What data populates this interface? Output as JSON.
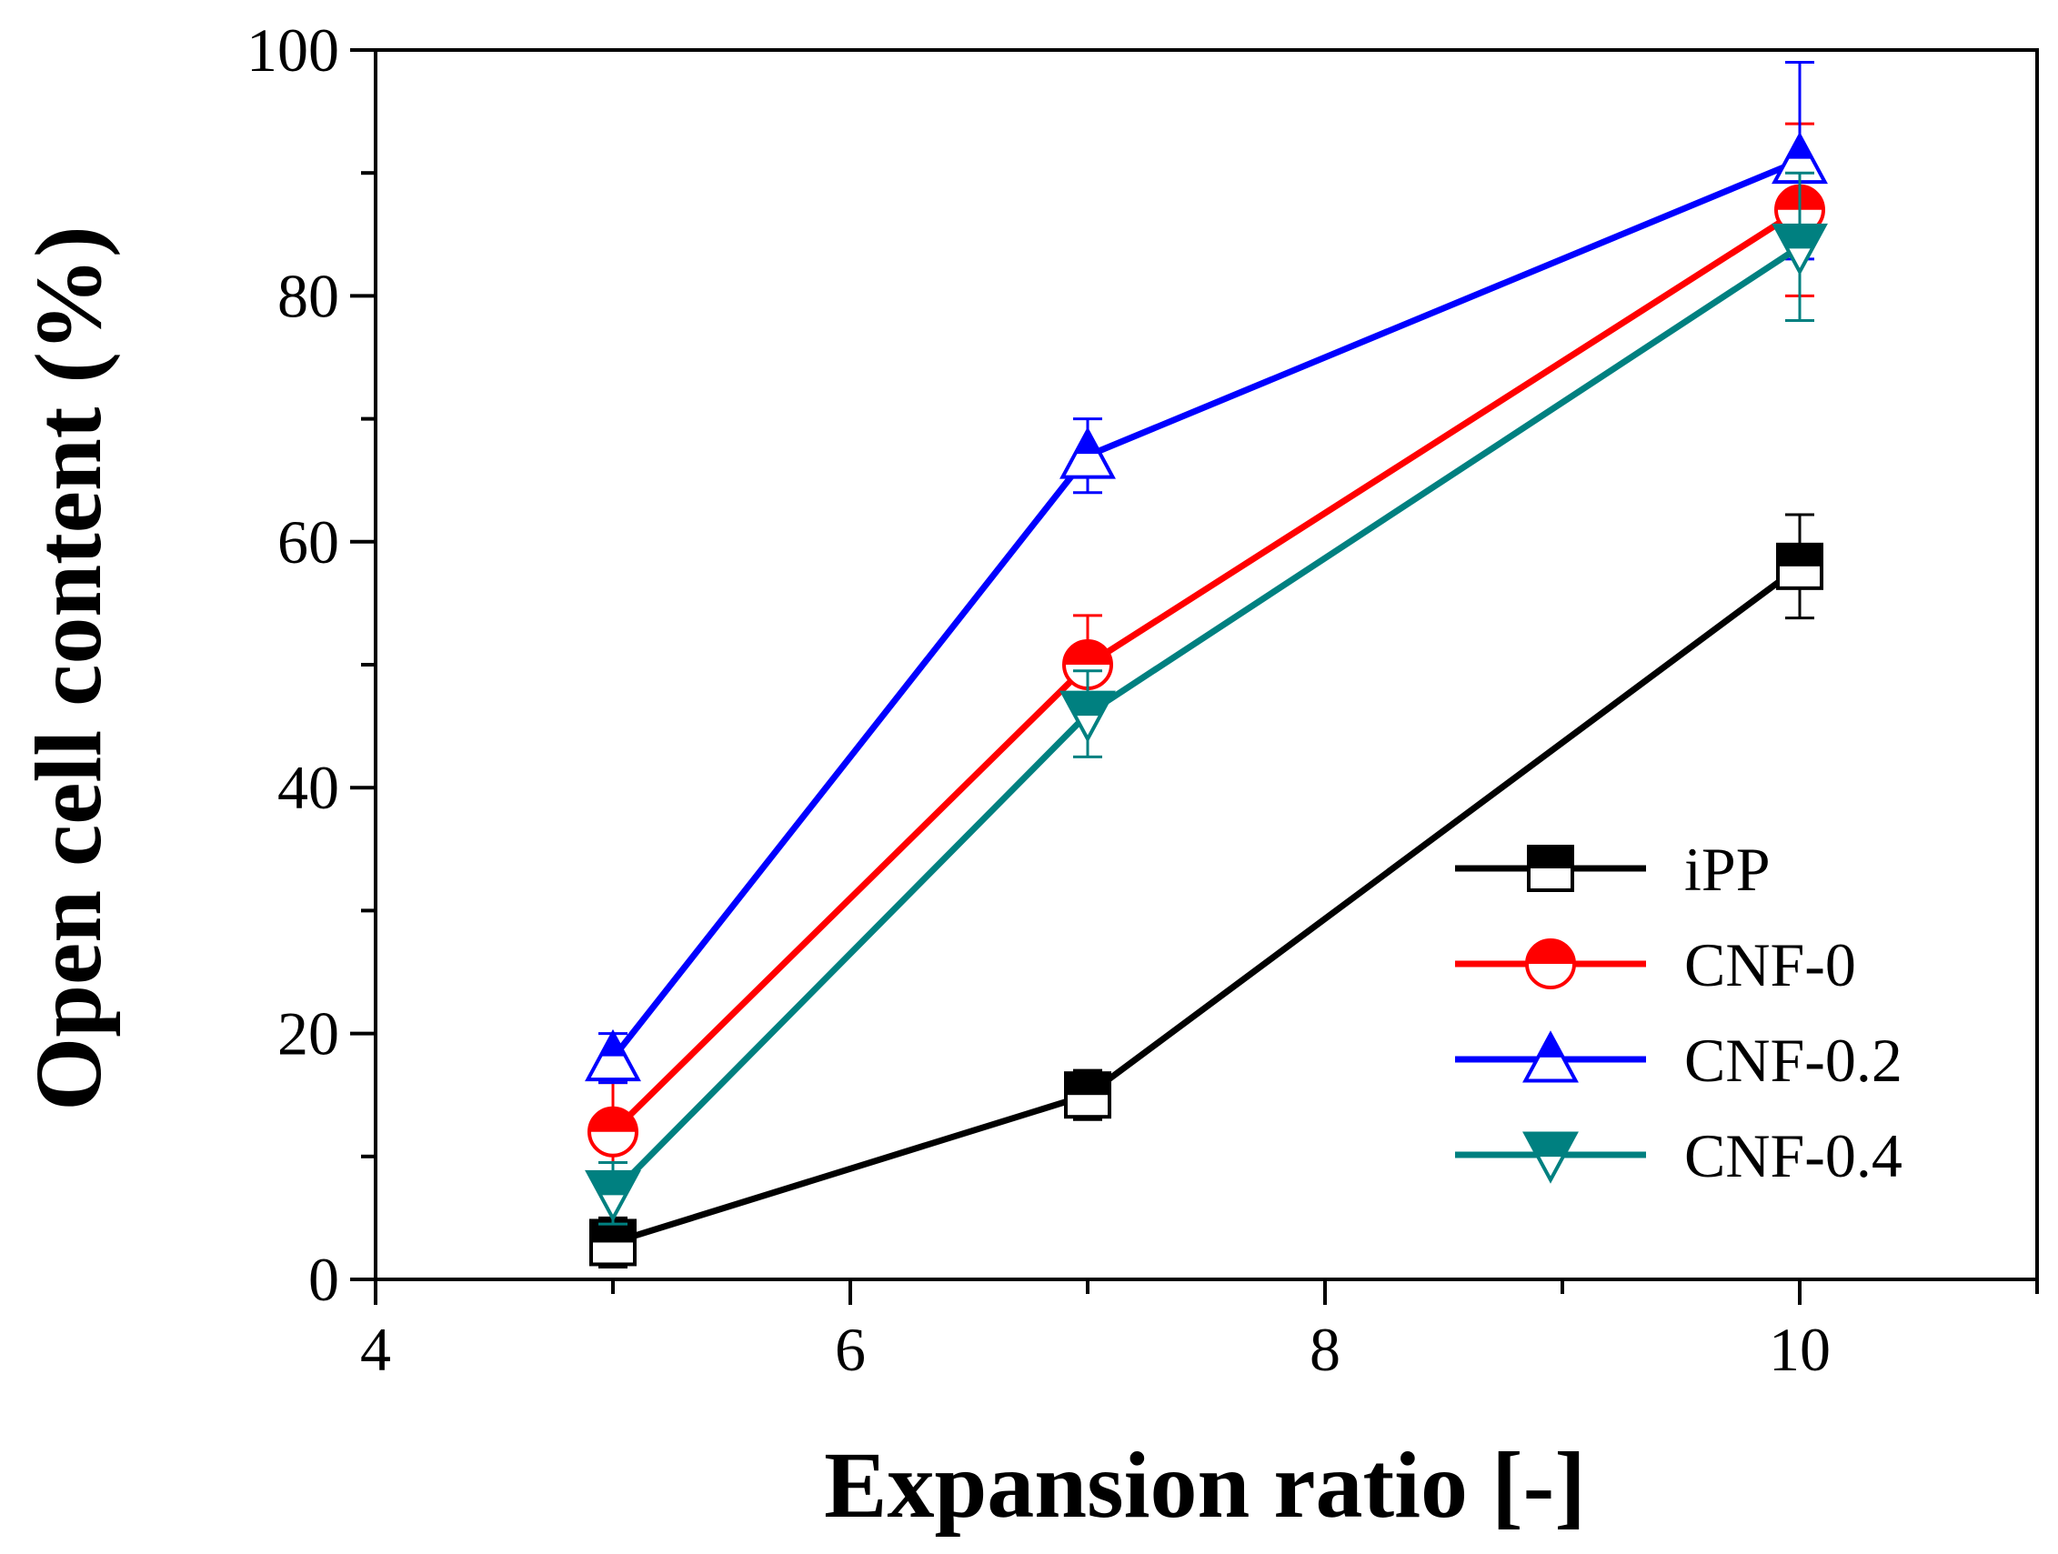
{
  "chart_data": {
    "type": "line",
    "title": "",
    "xlabel": "Expansion ratio [-]",
    "ylabel": "Open cell content (%)",
    "xlim": [
      4,
      11
    ],
    "ylim": [
      0,
      100
    ],
    "xticks": [
      4,
      6,
      8,
      10
    ],
    "yticks": [
      0,
      20,
      40,
      60,
      80,
      100
    ],
    "x": [
      5,
      7,
      10
    ],
    "legend_position": "lower-right",
    "series": [
      {
        "name": "iPP",
        "color": "#000000",
        "marker": "square-half",
        "values": [
          3,
          15,
          58
        ],
        "errors": [
          2,
          2,
          4.2
        ]
      },
      {
        "name": "CNF-0",
        "color": "#ff0000",
        "marker": "circle-half",
        "values": [
          12,
          50,
          87
        ],
        "errors": [
          4,
          4,
          7
        ]
      },
      {
        "name": "CNF-0.2",
        "color": "#0000ff",
        "marker": "triangle-up-half",
        "values": [
          18,
          67,
          91
        ],
        "errors": [
          2,
          3,
          8
        ]
      },
      {
        "name": "CNF-0.4",
        "color": "#008080",
        "marker": "triangle-down-half",
        "values": [
          7,
          46,
          84
        ],
        "errors": [
          2.5,
          3.5,
          6
        ]
      }
    ]
  }
}
